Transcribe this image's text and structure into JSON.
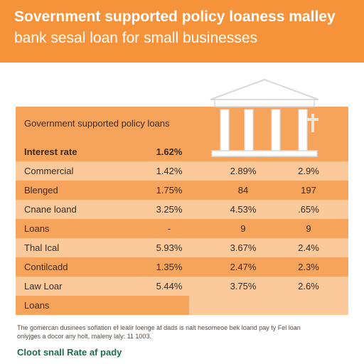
{
  "banner": {
    "title_line1": "Sovernment supported policy loaness malley",
    "title_line2": "bank sesal loan for small businesses"
  },
  "table": {
    "caption": "Government supported policy loans",
    "rows": [
      {
        "label": "Interest rate",
        "v1": "1.62%",
        "v2": "",
        "v3": ""
      },
      {
        "label": "Commercial",
        "v1": "1.42%",
        "v2": "2.89%",
        "v3": "2.9%"
      },
      {
        "label": "Blenged",
        "v1": "1.75%",
        "v2": "84",
        "v3": "197"
      },
      {
        "label": "Cnane loand",
        "v1": "3.25%",
        "v2": "4.53%",
        "v3": ".65%"
      },
      {
        "label": "Loans",
        "v1": "-",
        "v2": "9",
        "v3": "9"
      },
      {
        "label": "Thal Ical",
        "v1": "5.93%",
        "v2": "3.67%",
        "v3": "2.4%"
      },
      {
        "label": "Contilcadd",
        "v1": "1.35%",
        "v2": "2.47%",
        "v3": "2.3%"
      },
      {
        "label": "Law Loar",
        "v1": "5.44%",
        "v2": "3.75%",
        "v3": "2.6%"
      },
      {
        "label": "Loans",
        "v1": "",
        "v2": "",
        "v3": ""
      }
    ]
  },
  "footnote": {
    "line1": "The gomercan dusinees soflation ef lealir loenge af dads is nalt hesomeoe bek loand pay ty Fel loan",
    "line2": "onlyjges a docor any holt, maleny laly: 11 1003."
  },
  "cta": {
    "label": "Cloot snall Rate af pady"
  },
  "colors": {
    "banner": "#f5923a",
    "row_dark": "#f6a45c",
    "row_light": "#fbc99a",
    "cta": "#1f6a4a"
  },
  "icons": [
    "bank-building-icon"
  ]
}
